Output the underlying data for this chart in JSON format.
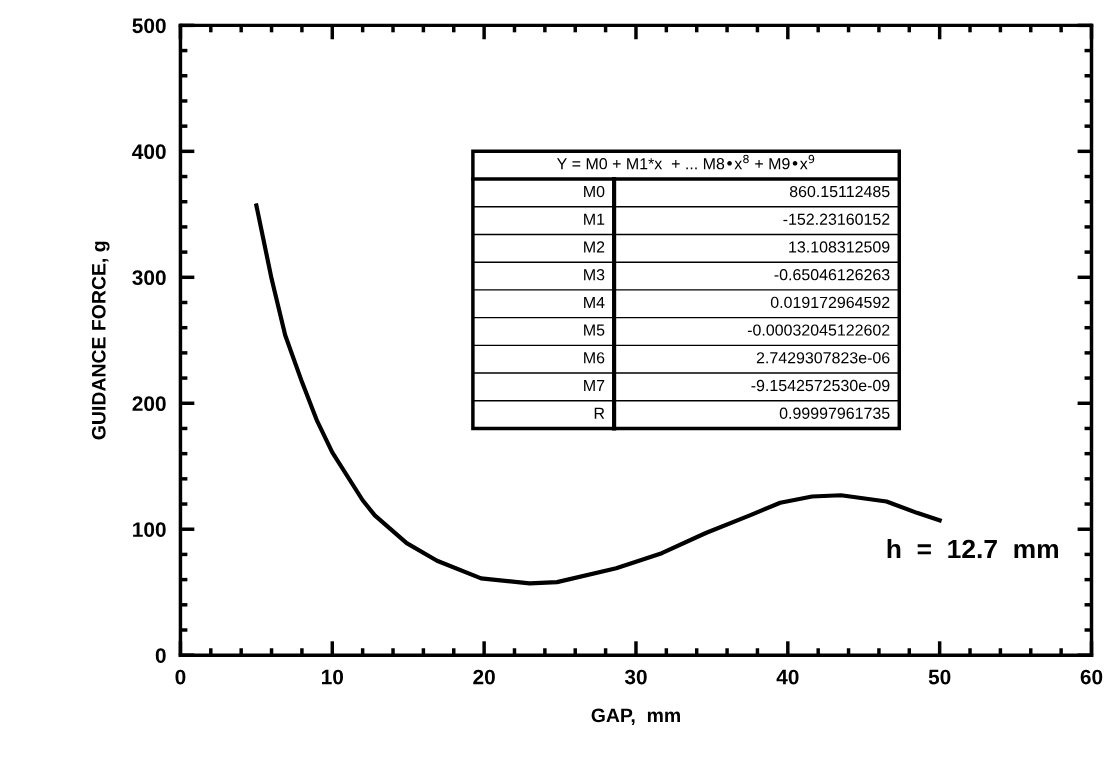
{
  "chart_data": {
    "type": "line",
    "xlabel": "GAP,  mm",
    "ylabel": "GUIDANCE FORCE, g",
    "x": [
      5,
      6,
      6.9,
      8,
      9,
      10,
      12,
      12.8,
      14.9,
      16.9,
      19.8,
      23,
      24.8,
      28.7,
      31.7,
      34.6,
      37.5,
      39.5,
      41.6,
      43.5,
      46.5,
      48.5,
      50
    ],
    "series": [
      {
        "color": "#000000",
        "values": [
          357,
          299,
          254,
          217,
          186,
          161,
          123,
          111,
          89,
          75,
          61,
          57,
          58,
          69,
          81,
          97,
          111,
          121,
          126,
          127,
          122,
          113,
          107
        ]
      }
    ],
    "xlim": [
      0,
      60
    ],
    "ylim": [
      0,
      500
    ],
    "xticks": [
      0,
      {
        "value": 2,
        "label": null
      },
      {
        "value": 4,
        "label": null
      },
      {
        "value": 6,
        "label": null
      },
      {
        "value": 8,
        "label": null
      },
      10,
      {
        "value": 12,
        "label": null
      },
      {
        "value": 14,
        "label": null
      },
      {
        "value": 16,
        "label": null
      },
      {
        "value": 18,
        "label": null
      },
      20,
      {
        "value": 22,
        "label": null
      },
      {
        "value": 24,
        "label": null
      },
      {
        "value": 26,
        "label": null
      },
      {
        "value": 28,
        "label": null
      },
      30,
      {
        "value": 32,
        "label": null
      },
      {
        "value": 34,
        "label": null
      },
      {
        "value": 36,
        "label": null
      },
      {
        "value": 38,
        "label": null
      },
      40,
      {
        "value": 42,
        "label": null
      },
      {
        "value": 44,
        "label": null
      },
      {
        "value": 46,
        "label": null
      },
      {
        "value": 48,
        "label": null
      },
      50,
      {
        "value": 52,
        "label": null
      },
      {
        "value": 54,
        "label": null
      },
      {
        "value": 56,
        "label": null
      },
      {
        "value": 58,
        "label": null
      },
      60
    ],
    "yticks": [
      0,
      {
        "value": 20,
        "label": null
      },
      {
        "value": 40,
        "label": null
      },
      {
        "value": 60,
        "label": null
      },
      {
        "value": 80,
        "label": null
      },
      100,
      {
        "value": 120,
        "label": null
      },
      {
        "value": 140,
        "label": null
      },
      {
        "value": 160,
        "label": null
      },
      {
        "value": 180,
        "label": null
      },
      200,
      {
        "value": 220,
        "label": null
      },
      {
        "value": 240,
        "label": null
      },
      {
        "value": 260,
        "label": null
      },
      {
        "value": 280,
        "label": null
      },
      300,
      {
        "value": 320,
        "label": null
      },
      {
        "value": 340,
        "label": null
      },
      {
        "value": 360,
        "label": null
      },
      {
        "value": 380,
        "label": null
      },
      400,
      {
        "value": 420,
        "label": null
      },
      {
        "value": 440,
        "label": null
      },
      {
        "value": 460,
        "label": null
      },
      {
        "value": 480,
        "label": null
      },
      500
    ],
    "grid": false,
    "legend": false,
    "marker": "none",
    "line_style": "solid",
    "annotations": [
      "Y = M0 + M1*x  + ... M8•x$^{8}$ + M9•x$^{9}$",
      "M0",
      "860.15112485",
      "M1",
      "-152.23160152",
      "M2",
      "13.108312509",
      "M3",
      "-0.65046126263",
      "M4",
      "0.019172964592",
      "M5",
      "-0.00032045122602",
      "M6",
      "2.7429307823e-06",
      "M7",
      "-9.1542572530e-09",
      "R",
      "0.99997961735",
      "h  =  12.7  mm"
    ]
  }
}
